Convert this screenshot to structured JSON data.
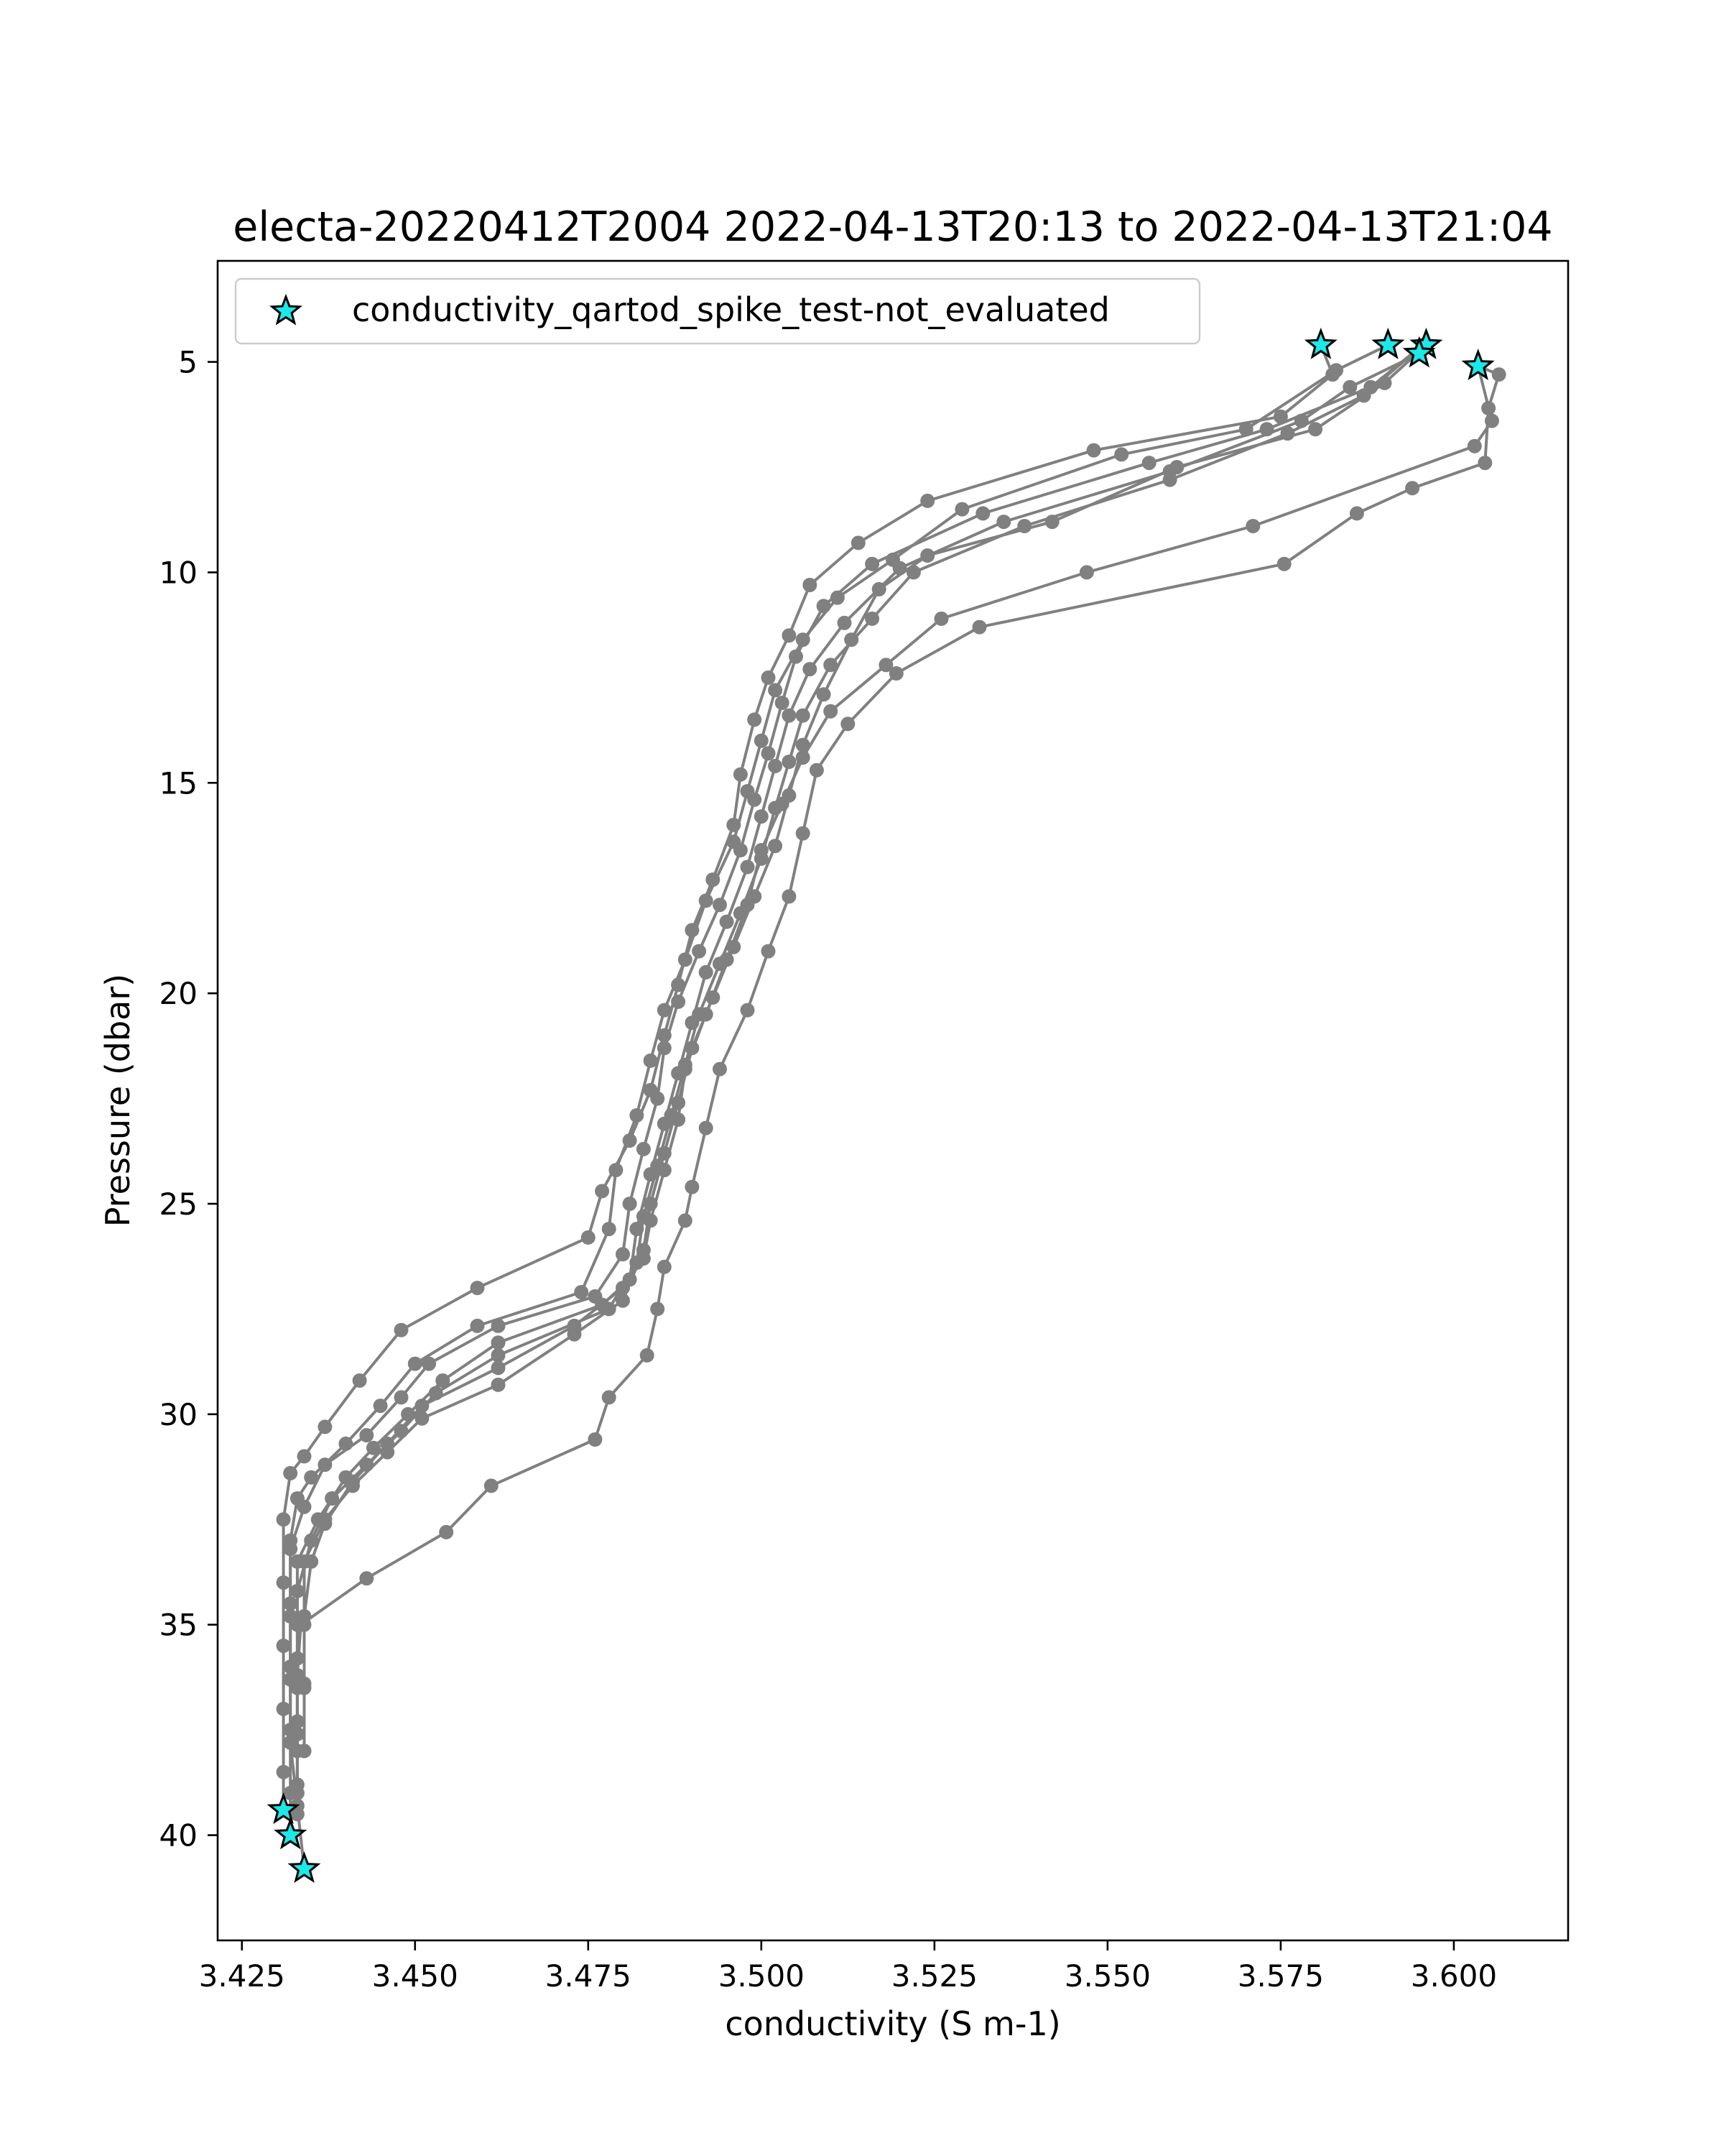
{
  "chart_data": {
    "type": "line",
    "title": "electa-20220412T2004 2022-04-13T20:13 to 2022-04-13T21:04",
    "xlabel": "conductivity (S m-1)",
    "ylabel": "Pressure (dbar)",
    "xlim": [
      3.4215,
      3.6165
    ],
    "ylim": [
      42.5,
      2.6
    ],
    "y_inverted": true,
    "grid": false,
    "legend_position": "top-left",
    "x_ticks": [
      3.425,
      3.45,
      3.475,
      3.5,
      3.525,
      3.55,
      3.575,
      3.6
    ],
    "x_tick_labels": [
      "3.425",
      "3.450",
      "3.475",
      "3.500",
      "3.525",
      "3.550",
      "3.575",
      "3.600"
    ],
    "y_ticks": [
      5,
      10,
      15,
      20,
      25,
      30,
      35,
      40
    ],
    "y_tick_labels": [
      "5",
      "10",
      "15",
      "20",
      "25",
      "30",
      "35",
      "40"
    ],
    "line_color": "#808080",
    "marker_color": "#1ce8e8",
    "series": [
      {
        "points": [
          [
            3.5808,
            4.6
          ],
          [
            3.5825,
            5.3
          ],
          [
            3.575,
            6.3
          ],
          [
            3.548,
            7.1
          ],
          [
            3.524,
            8.3
          ],
          [
            3.514,
            9.3
          ],
          [
            3.507,
            10.3
          ],
          [
            3.504,
            11.5
          ],
          [
            3.501,
            12.5
          ],
          [
            3.499,
            13.5
          ],
          [
            3.497,
            14.8
          ],
          [
            3.496,
            16.0
          ],
          [
            3.493,
            17.3
          ],
          [
            3.49,
            18.5
          ],
          [
            3.488,
            19.8
          ],
          [
            3.486,
            21.0
          ],
          [
            3.484,
            22.3
          ],
          [
            3.481,
            23.5
          ],
          [
            3.477,
            24.7
          ],
          [
            3.475,
            25.8
          ],
          [
            3.459,
            27.0
          ],
          [
            3.448,
            28.0
          ],
          [
            3.442,
            29.2
          ],
          [
            3.437,
            30.3
          ],
          [
            3.434,
            31.0
          ],
          [
            3.432,
            31.4
          ],
          [
            3.431,
            32.5
          ],
          [
            3.431,
            34.0
          ],
          [
            3.431,
            35.5
          ],
          [
            3.431,
            37.0
          ],
          [
            3.431,
            38.5
          ],
          [
            3.431,
            39.4
          ]
        ]
      },
      {
        "points": [
          [
            3.5905,
            4.6
          ],
          [
            3.583,
            5.2
          ],
          [
            3.57,
            6.6
          ],
          [
            3.552,
            7.2
          ],
          [
            3.529,
            8.5
          ],
          [
            3.519,
            9.7
          ],
          [
            3.511,
            10.6
          ],
          [
            3.506,
            11.6
          ],
          [
            3.502,
            12.8
          ],
          [
            3.5,
            14.0
          ],
          [
            3.498,
            15.2
          ],
          [
            3.496,
            16.4
          ],
          [
            3.492,
            17.8
          ],
          [
            3.489,
            19.2
          ],
          [
            3.486,
            20.4
          ],
          [
            3.484,
            21.6
          ],
          [
            3.482,
            22.9
          ],
          [
            3.479,
            24.2
          ],
          [
            3.478,
            25.6
          ],
          [
            3.474,
            27.1
          ],
          [
            3.459,
            27.9
          ],
          [
            3.45,
            28.8
          ],
          [
            3.445,
            29.8
          ],
          [
            3.44,
            30.7
          ],
          [
            3.435,
            31.5
          ],
          [
            3.433,
            32.0
          ],
          [
            3.432,
            33.0
          ],
          [
            3.432,
            34.5
          ],
          [
            3.432,
            36.0
          ],
          [
            3.432,
            37.5
          ],
          [
            3.432,
            39.0
          ],
          [
            3.432,
            40.0
          ]
        ]
      },
      {
        "points": [
          [
            3.5955,
            4.6
          ],
          [
            3.588,
            5.6
          ],
          [
            3.573,
            6.6
          ],
          [
            3.556,
            7.4
          ],
          [
            3.532,
            8.6
          ],
          [
            3.516,
            9.8
          ],
          [
            3.509,
            10.8
          ],
          [
            3.505,
            12.0
          ],
          [
            3.503,
            13.1
          ],
          [
            3.501,
            14.3
          ],
          [
            3.499,
            15.4
          ],
          [
            3.497,
            16.6
          ],
          [
            3.494,
            17.9
          ],
          [
            3.491,
            19.0
          ],
          [
            3.488,
            20.2
          ],
          [
            3.486,
            21.3
          ],
          [
            3.485,
            22.5
          ],
          [
            3.483,
            23.7
          ],
          [
            3.481,
            25.0
          ],
          [
            3.48,
            26.2
          ],
          [
            3.476,
            27.2
          ],
          [
            3.462,
            27.9
          ],
          [
            3.452,
            28.8
          ],
          [
            3.448,
            29.6
          ],
          [
            3.443,
            30.5
          ],
          [
            3.437,
            31.2
          ],
          [
            3.434,
            32.2
          ],
          [
            3.432,
            33.2
          ],
          [
            3.432,
            34.8
          ],
          [
            3.432,
            36.3
          ],
          [
            3.432,
            37.8
          ],
          [
            3.433,
            39.3
          ],
          [
            3.434,
            40.8
          ]
        ]
      },
      {
        "points": [
          [
            3.595,
            4.8
          ],
          [
            3.585,
            5.6
          ],
          [
            3.578,
            6.4
          ],
          [
            3.559,
            7.6
          ],
          [
            3.535,
            8.8
          ],
          [
            3.52,
            9.9
          ],
          [
            3.512,
            11.2
          ],
          [
            3.507,
            12.3
          ],
          [
            3.504,
            13.4
          ],
          [
            3.502,
            14.6
          ],
          [
            3.5,
            15.8
          ],
          [
            3.498,
            17.0
          ],
          [
            3.495,
            18.3
          ],
          [
            3.492,
            19.5
          ],
          [
            3.49,
            20.7
          ],
          [
            3.488,
            21.9
          ],
          [
            3.486,
            23.1
          ],
          [
            3.484,
            24.3
          ],
          [
            3.482,
            25.6
          ],
          [
            3.481,
            26.8
          ],
          [
            3.477,
            27.4
          ],
          [
            3.462,
            28.3
          ],
          [
            3.454,
            29.2
          ],
          [
            3.449,
            30.0
          ],
          [
            3.444,
            30.8
          ],
          [
            3.44,
            31.5
          ],
          [
            3.436,
            32.5
          ],
          [
            3.433,
            33.5
          ],
          [
            3.433,
            35.0
          ],
          [
            3.433,
            36.5
          ],
          [
            3.433,
            38.0
          ],
          [
            3.433,
            39.5
          ]
        ]
      },
      {
        "points": [
          [
            3.5955,
            4.6
          ],
          [
            3.587,
            5.8
          ],
          [
            3.576,
            6.7
          ],
          [
            3.559,
            7.8
          ],
          [
            3.538,
            8.9
          ],
          [
            3.522,
            10.0
          ],
          [
            3.516,
            11.1
          ],
          [
            3.51,
            12.2
          ],
          [
            3.506,
            13.4
          ],
          [
            3.504,
            14.5
          ],
          [
            3.502,
            15.6
          ],
          [
            3.5,
            16.8
          ],
          [
            3.497,
            18.1
          ],
          [
            3.494,
            19.3
          ],
          [
            3.491,
            20.5
          ],
          [
            3.489,
            21.7
          ],
          [
            3.487,
            22.9
          ],
          [
            3.485,
            24.1
          ],
          [
            3.483,
            25.3
          ],
          [
            3.482,
            26.4
          ],
          [
            3.478,
            27.5
          ],
          [
            3.462,
            28.6
          ],
          [
            3.453,
            29.5
          ],
          [
            3.448,
            30.4
          ],
          [
            3.443,
            31.2
          ],
          [
            3.438,
            32.0
          ],
          [
            3.435,
            33.0
          ],
          [
            3.433,
            34.2
          ],
          [
            3.433,
            35.8
          ],
          [
            3.433,
            37.3
          ],
          [
            3.433,
            38.8
          ]
        ]
      },
      {
        "points": [
          [
            3.596,
            4.6
          ],
          [
            3.59,
            5.5
          ],
          [
            3.58,
            6.6
          ],
          [
            3.56,
            7.5
          ],
          [
            3.542,
            8.8
          ],
          [
            3.524,
            9.6
          ],
          [
            3.517,
            10.4
          ],
          [
            3.513,
            11.6
          ],
          [
            3.509,
            12.9
          ],
          [
            3.506,
            14.1
          ],
          [
            3.504,
            15.3
          ],
          [
            3.502,
            16.5
          ],
          [
            3.499,
            17.7
          ],
          [
            3.496,
            18.9
          ],
          [
            3.493,
            20.1
          ],
          [
            3.49,
            21.3
          ],
          [
            3.488,
            22.6
          ],
          [
            3.486,
            23.8
          ],
          [
            3.484,
            25.0
          ],
          [
            3.483,
            26.1
          ],
          [
            3.48,
            27.3
          ],
          [
            3.473,
            28.1
          ],
          [
            3.462,
            29.3
          ],
          [
            3.451,
            30.1
          ],
          [
            3.446,
            30.9
          ],
          [
            3.441,
            31.7
          ],
          [
            3.437,
            32.5
          ],
          [
            3.434,
            33.5
          ],
          [
            3.434,
            35.0
          ],
          [
            3.434,
            36.5
          ],
          [
            3.434,
            38.0
          ]
        ]
      },
      {
        "points": [
          [
            3.6035,
            5.1
          ],
          [
            3.6065,
            5.3
          ],
          [
            3.605,
            6.1
          ],
          [
            3.6045,
            7.4
          ],
          [
            3.594,
            8.0
          ],
          [
            3.586,
            8.6
          ],
          [
            3.5755,
            9.8
          ],
          [
            3.5315,
            11.3
          ],
          [
            3.5195,
            12.4
          ],
          [
            3.5125,
            13.6
          ],
          [
            3.508,
            14.7
          ],
          [
            3.506,
            16.2
          ],
          [
            3.504,
            17.7
          ],
          [
            3.501,
            19.0
          ],
          [
            3.498,
            20.4
          ],
          [
            3.494,
            21.8
          ],
          [
            3.492,
            23.2
          ],
          [
            3.49,
            24.6
          ],
          [
            3.489,
            25.4
          ],
          [
            3.486,
            26.5
          ],
          [
            3.485,
            27.5
          ],
          [
            3.4835,
            28.6
          ],
          [
            3.478,
            29.6
          ],
          [
            3.476,
            30.6
          ],
          [
            3.461,
            31.7
          ],
          [
            3.4545,
            32.8
          ],
          [
            3.443,
            33.9
          ],
          [
            3.4335,
            35.0
          ],
          [
            3.433,
            36.2
          ],
          [
            3.433,
            37.6
          ],
          [
            3.433,
            39.0
          ]
        ]
      },
      {
        "points": [
          [
            3.6035,
            5.1
          ],
          [
            3.6055,
            6.4
          ],
          [
            3.603,
            7.0
          ],
          [
            3.571,
            8.9
          ],
          [
            3.547,
            10.0
          ],
          [
            3.526,
            11.1
          ],
          [
            3.518,
            12.2
          ],
          [
            3.51,
            13.3
          ],
          [
            3.506,
            14.4
          ],
          [
            3.503,
            15.5
          ],
          [
            3.5,
            16.6
          ],
          [
            3.498,
            17.9
          ],
          [
            3.495,
            19.2
          ],
          [
            3.492,
            20.5
          ],
          [
            3.489,
            21.8
          ],
          [
            3.488,
            23.0
          ],
          [
            3.486,
            24.2
          ],
          [
            3.484,
            25.4
          ],
          [
            3.483,
            26.3
          ],
          [
            3.48,
            27.0
          ],
          [
            3.473,
            27.9
          ],
          [
            3.462,
            28.9
          ],
          [
            3.451,
            29.8
          ],
          [
            3.446,
            30.7
          ],
          [
            3.441,
            31.6
          ],
          [
            3.437,
            32.6
          ],
          [
            3.435,
            33.5
          ],
          [
            3.434,
            34.8
          ],
          [
            3.434,
            36.4
          ],
          [
            3.434,
            38.0
          ]
        ]
      }
    ],
    "flagged": {
      "legend": "conductivity_qartod_spike_test-not_evaluated",
      "points": [
        [
          3.5808,
          4.6
        ],
        [
          3.5905,
          4.6
        ],
        [
          3.596,
          4.6
        ],
        [
          3.595,
          4.8
        ],
        [
          3.6035,
          5.1
        ],
        [
          3.431,
          39.4
        ],
        [
          3.432,
          40.0
        ],
        [
          3.434,
          40.8
        ]
      ]
    }
  }
}
